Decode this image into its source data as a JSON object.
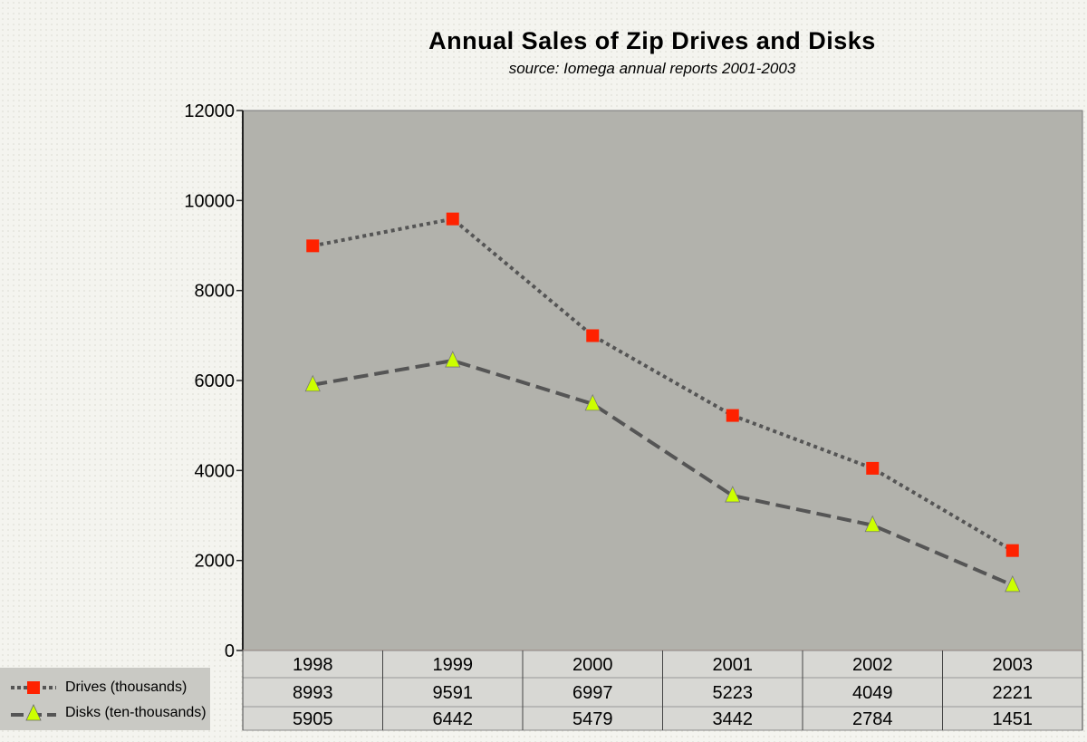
{
  "chart_data": {
    "type": "line",
    "title": "Annual Sales of Zip Drives and Disks",
    "subtitle": "source: Iomega annual reports 2001-2003",
    "xlabel": "",
    "ylabel": "",
    "ylim": [
      0,
      12000
    ],
    "yticks": [
      "0",
      "2000",
      "4000",
      "6000",
      "8000",
      "10000",
      "12000"
    ],
    "categories": [
      "1998",
      "1999",
      "2000",
      "2001",
      "2002",
      "2003"
    ],
    "series": [
      {
        "name": "Drives (thousands)",
        "values": [
          8993,
          9591,
          6997,
          5223,
          4049,
          2221
        ],
        "marker": "square",
        "line": "dotted",
        "marker_color": "#ff2200"
      },
      {
        "name": "Disks (ten-thousands)",
        "values": [
          5905,
          6442,
          5479,
          3442,
          2784,
          1451
        ],
        "marker": "triangle",
        "line": "dashed",
        "marker_color": "#ccff00"
      }
    ],
    "grid": false,
    "legend": "bottom-left",
    "data_table": true
  },
  "colors": {
    "plot_bg": "#b2b2ac",
    "line": "#555555",
    "table_bg": "#d8d8d4"
  }
}
